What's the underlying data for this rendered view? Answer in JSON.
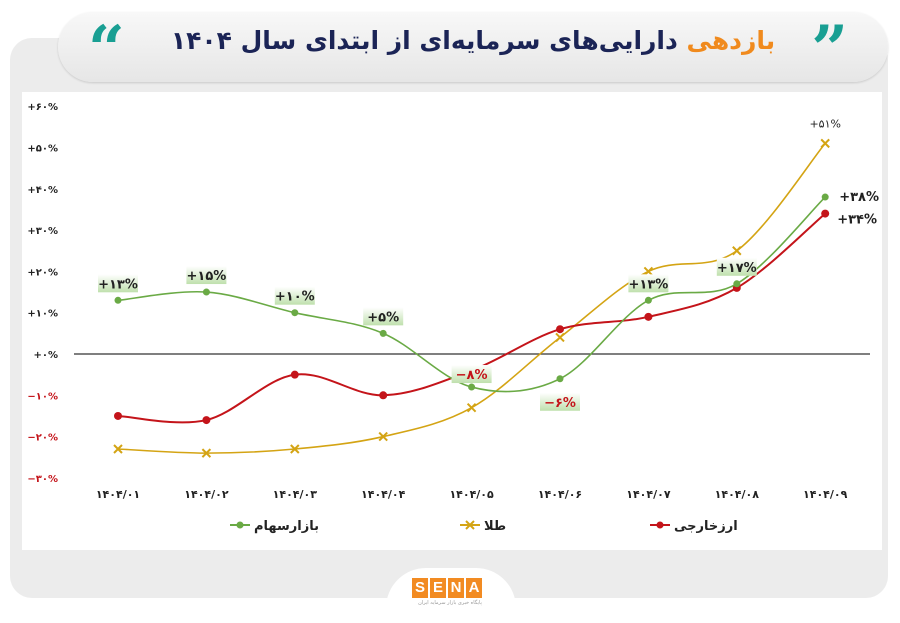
{
  "header": {
    "title_highlight": "بازدهی",
    "title_rest": "دارایی‌های سرمایه‌ای از ابتدای سال ۱۴۰۴",
    "quote_open": "“",
    "quote_close": "”",
    "accent_color": "#f08a1d",
    "quote_color": "#199f93"
  },
  "chart_data": {
    "type": "line",
    "categories": [
      "۱۴۰۴/۰۱",
      "۱۴۰۴/۰۲",
      "۱۴۰۴/۰۳",
      "۱۴۰۴/۰۴",
      "۱۴۰۴/۰۵",
      "۱۴۰۴/۰۶",
      "۱۴۰۴/۰۷",
      "۱۴۰۴/۰۸",
      "۱۴۰۴/۰۹"
    ],
    "ylim": [
      -30,
      60
    ],
    "yticks": [
      {
        "value": 60,
        "label": "+۶۰%"
      },
      {
        "value": 50,
        "label": "+۵۰%"
      },
      {
        "value": 40,
        "label": "+۴۰%"
      },
      {
        "value": 30,
        "label": "+۳۰%"
      },
      {
        "value": 20,
        "label": "+۲۰%"
      },
      {
        "value": 10,
        "label": "+۱۰%"
      },
      {
        "value": 0,
        "label": "+۰%"
      },
      {
        "value": -10,
        "label": "−۱۰%"
      },
      {
        "value": -20,
        "label": "−۲۰%"
      },
      {
        "value": -30,
        "label": "−۳۰%"
      }
    ],
    "grid": false,
    "legend_placement": "bottom",
    "series": [
      {
        "name": "بازارسهام",
        "color": "#6aaa45",
        "marker": "circle",
        "values": [
          13,
          15,
          10,
          5,
          -8,
          -6,
          13,
          17,
          38
        ],
        "labels": [
          "+۱۳%",
          "+۱۵%",
          "+۱۰%",
          "+۵%",
          "−۸%",
          "−۶%",
          "+۱۳%",
          "+۱۷%",
          "+۳۸%"
        ]
      },
      {
        "name": "طلا",
        "color": "#d4a414",
        "marker": "x",
        "values": [
          -23,
          -24,
          -23,
          -20,
          -13,
          4,
          20,
          25,
          51
        ],
        "labels": [
          "",
          "",
          "",
          "",
          "",
          "",
          "",
          "",
          "+۵۱%"
        ]
      },
      {
        "name": "ارزخارجی",
        "color": "#c4141a",
        "marker": "circle",
        "values": [
          -15,
          -16,
          -5,
          -10,
          -4,
          6,
          9,
          16,
          34
        ],
        "labels": [
          "",
          "",
          "",
          "",
          "",
          "",
          "",
          "",
          "+۳۴%"
        ]
      }
    ]
  },
  "footer": {
    "logo_letters": [
      "S",
      "E",
      "N",
      "A"
    ],
    "logo_tagline": "پایگاه خبری بازار سرمایه ایران",
    "logo_color": "#f28b22"
  }
}
